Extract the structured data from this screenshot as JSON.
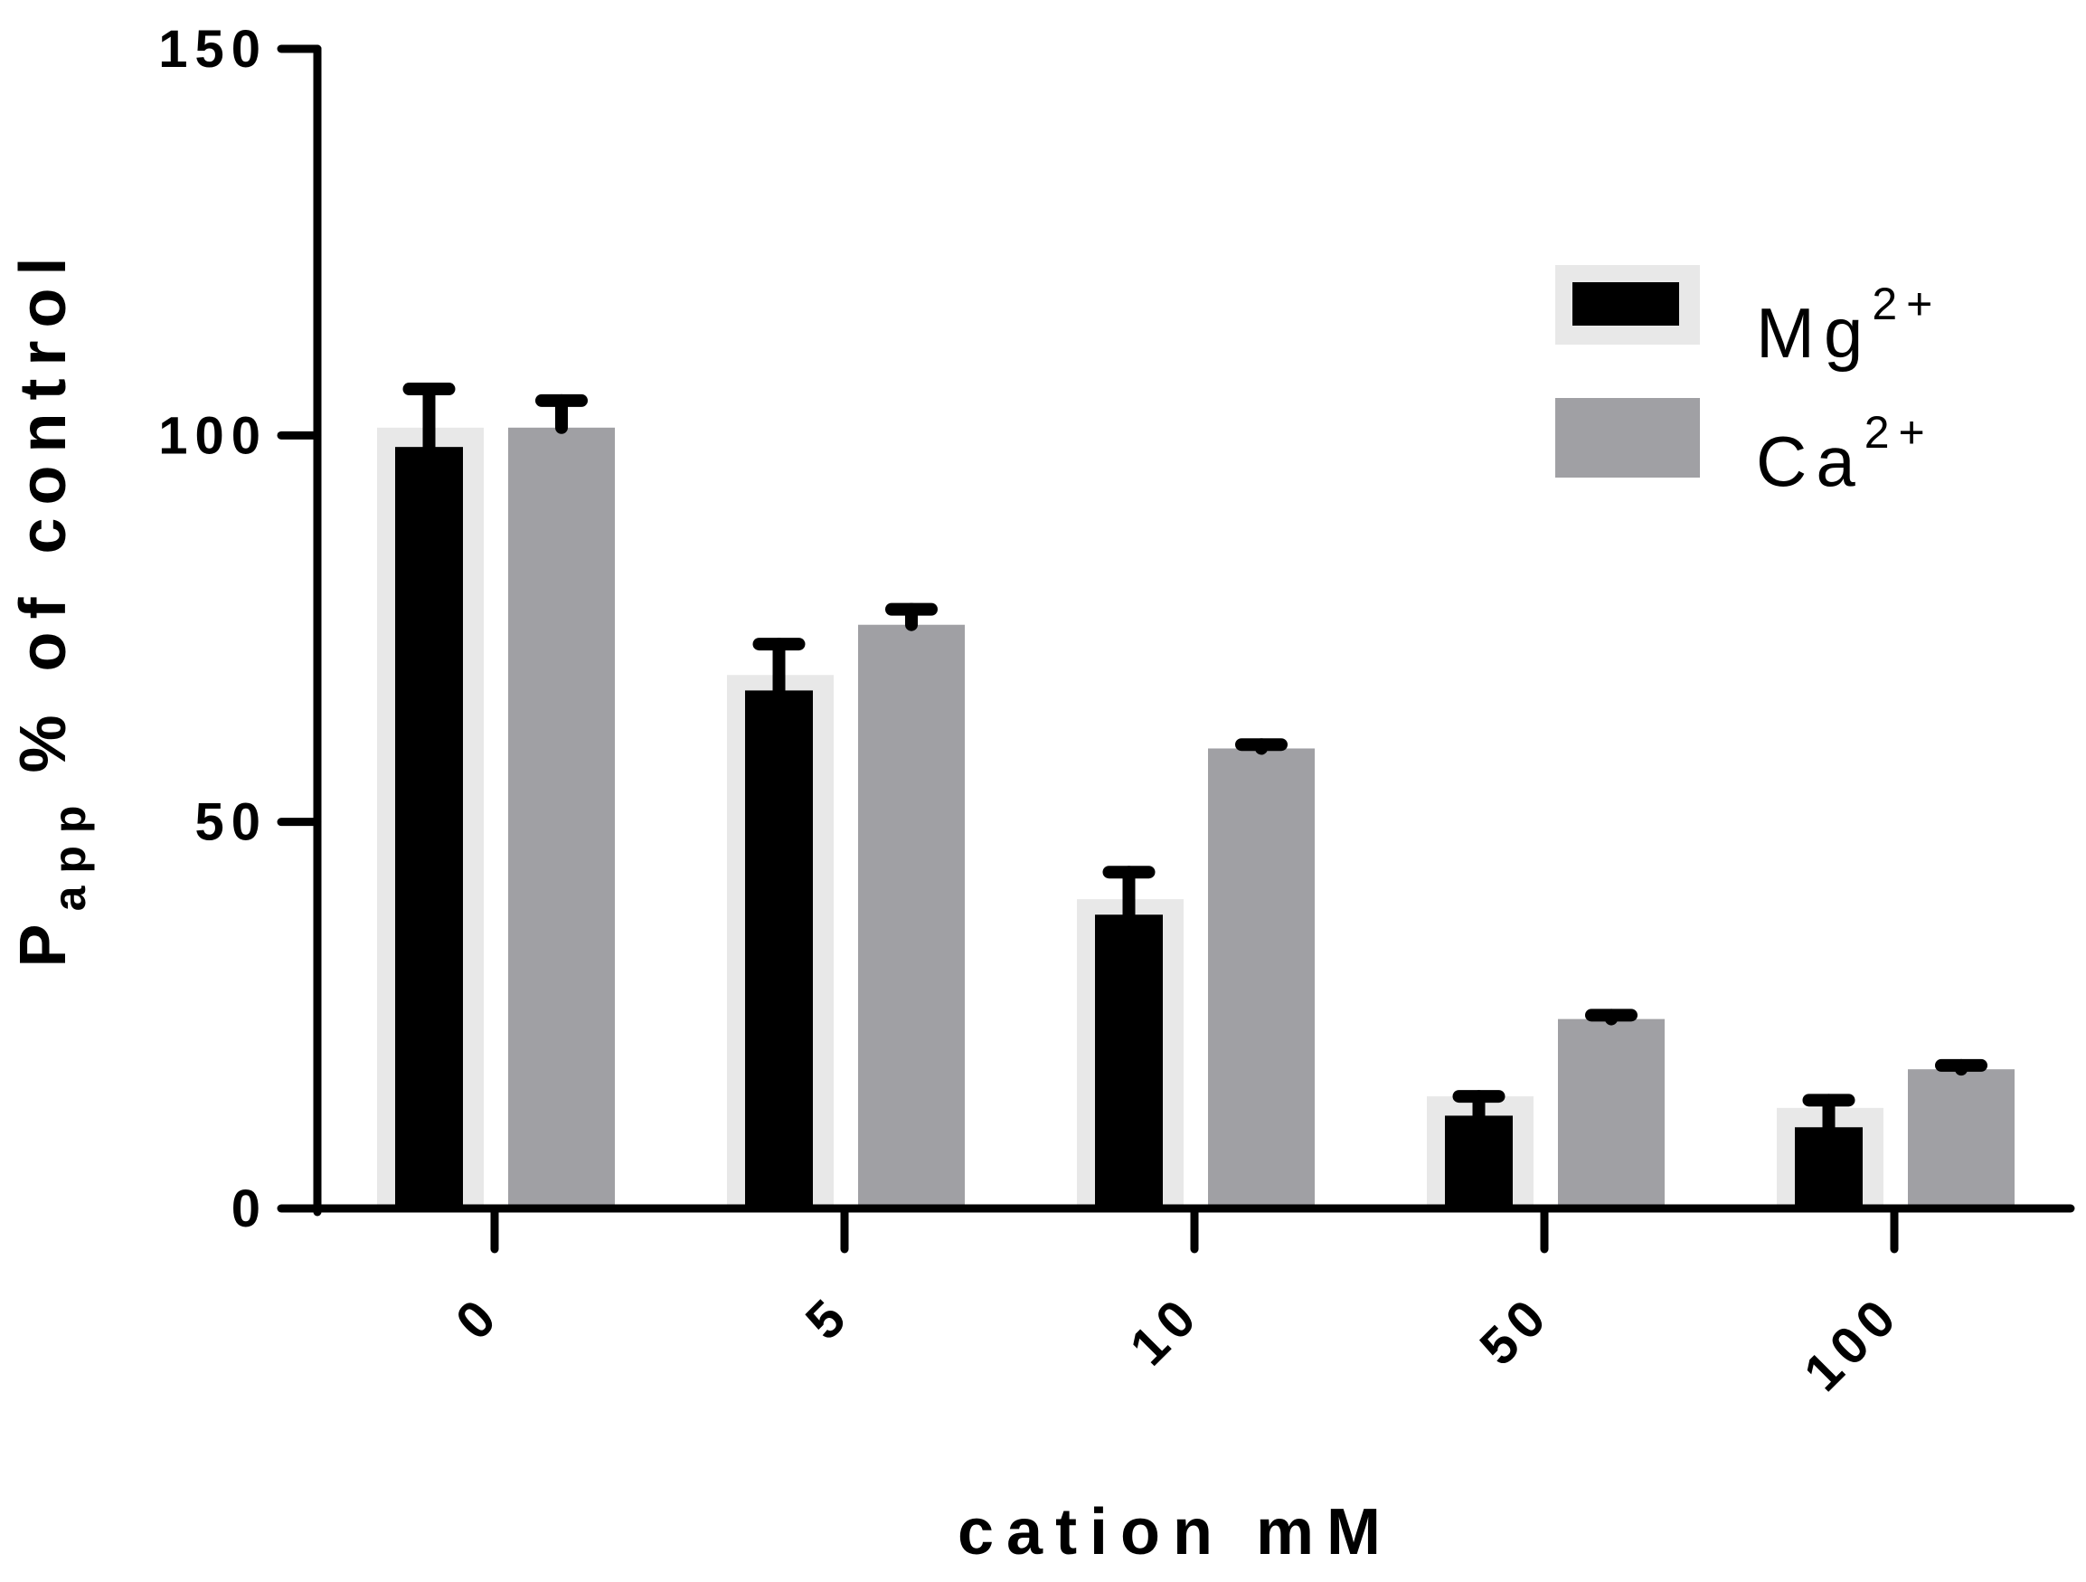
{
  "chart_data": {
    "type": "bar",
    "xlabel": "cation mM",
    "ylabel": {
      "main": "P",
      "sub": "app",
      "rest": "% of control"
    },
    "categories": [
      "0",
      "5",
      "10",
      "50",
      "100"
    ],
    "ylim": [
      0,
      150
    ],
    "yticks": [
      0,
      50,
      100,
      150
    ],
    "grid": false,
    "legend_position": "top-right",
    "series": [
      {
        "name": "Mg",
        "name_sup": "2+",
        "color": "#000000",
        "values": [
          98.5,
          67,
          38,
          12,
          10.5
        ],
        "errors": [
          7.5,
          6,
          5.5,
          2.5,
          3.5
        ]
      },
      {
        "name": "Ca",
        "name_sup": "2+",
        "color": "#a0a0a4",
        "values": [
          101,
          75.5,
          59.5,
          24.5,
          18
        ],
        "errors": [
          3.5,
          2,
          0.5,
          0.5,
          0.5
        ]
      }
    ],
    "shadow": {
      "color": "#e8e8e8",
      "values": [
        101,
        69,
        40,
        14.5,
        13
      ]
    }
  }
}
